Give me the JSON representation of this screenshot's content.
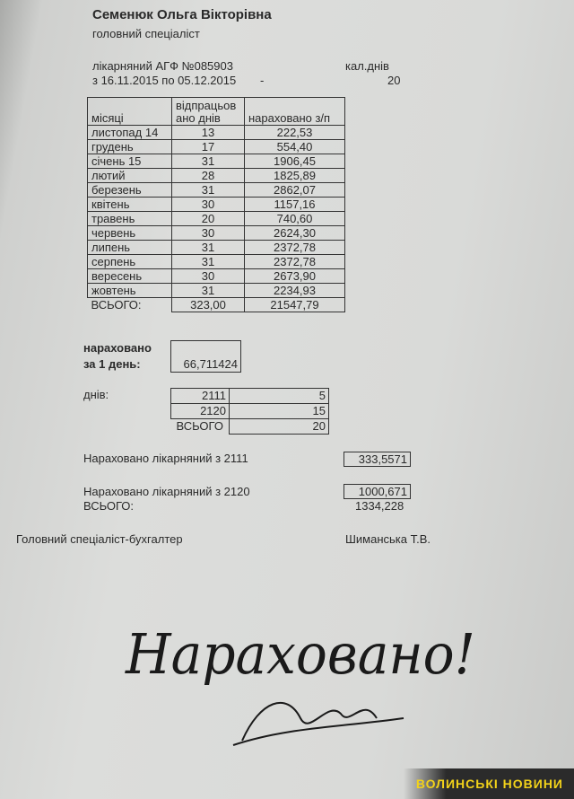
{
  "header": {
    "name": "Семенюк Ольга Вікторівна",
    "position": "головний спеціаліст",
    "sick_leave": "лікарняний  АГФ №085903",
    "period": "з 16.11.2015 по 05.12.2015",
    "dash": "-",
    "cal_days_label": "кал.днів",
    "cal_days_value": "20"
  },
  "table": {
    "headers": [
      "місяці",
      "відпрацьов ано днів",
      "нараховано з/п"
    ],
    "rows": [
      [
        "листопад 14",
        "13",
        "222,53"
      ],
      [
        "грудень",
        "17",
        "554,40"
      ],
      [
        "січень 15",
        "31",
        "1906,45"
      ],
      [
        "лютий",
        "28",
        "1825,89"
      ],
      [
        "березень",
        "31",
        "2862,07"
      ],
      [
        "квітень",
        "30",
        "1157,16"
      ],
      [
        "травень",
        "20",
        "740,60"
      ],
      [
        "червень",
        "30",
        "2624,30"
      ],
      [
        "липень",
        "31",
        "2372,78"
      ],
      [
        "серпень",
        "31",
        "2372,78"
      ],
      [
        "вересень",
        "30",
        "2673,90"
      ],
      [
        "жовтень",
        "31",
        "2234,93"
      ]
    ],
    "total": [
      "ВСЬОГО:",
      "323,00",
      "21547,79"
    ]
  },
  "per_day": {
    "label1": "нараховано",
    "label2": "за 1 день:",
    "value": "66,711424"
  },
  "days": {
    "label": "днів:",
    "rows": [
      [
        "2111",
        "5"
      ],
      [
        "2120",
        "15"
      ]
    ],
    "total": [
      "ВСЬОГО",
      "20"
    ]
  },
  "accrued": {
    "l2111": "Нараховано лікарняний з 2111",
    "v2111": "333,5571",
    "l2120": "Нараховано лікарняний з 2120",
    "v2120": "1000,671",
    "total_label": "ВСЬОГО:",
    "total_value": "1334,228"
  },
  "footer": {
    "role": "Головний спеціаліст-бухгалтер",
    "signer": "Шиманська Т.В."
  },
  "handwriting": {
    "text": "Нараховано!"
  },
  "watermark": {
    "text": "ВОЛИНСЬКІ НОВИНИ",
    "color": "#f2d21a"
  }
}
